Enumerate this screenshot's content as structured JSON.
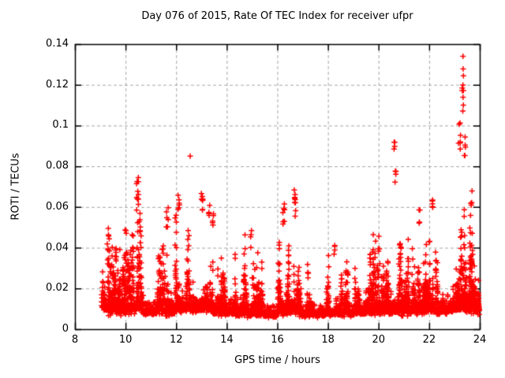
{
  "chart_data": {
    "type": "scatter",
    "title": "Day 076 of 2015, Rate Of TEC Index for receiver ufpr",
    "xlabel": "GPS time / hours",
    "ylabel": "ROTI / TECUs",
    "xlim": [
      8,
      24
    ],
    "ylim": [
      0,
      0.14
    ],
    "xticks": [
      8,
      10,
      12,
      14,
      16,
      18,
      20,
      22,
      24
    ],
    "yticks": [
      0,
      0.02,
      0.04,
      0.06,
      0.08,
      0.1,
      0.12,
      0.14
    ],
    "xtick_labels": [
      "8",
      "10",
      "12",
      "14",
      "16",
      "18",
      "20",
      "22",
      "24"
    ],
    "ytick_labels": [
      "0",
      "0.02",
      "0.04",
      "0.06",
      "0.08",
      "0.1",
      "0.12",
      "0.14"
    ],
    "grid": true,
    "legend": false,
    "marker": "plus",
    "data_time_range": [
      9.05,
      23.98
    ],
    "notable_outliers": [
      [
        12.56,
        0.085
      ],
      [
        23.34,
        0.134
      ],
      [
        23.33,
        0.128
      ],
      [
        20.63,
        0.095
      ],
      [
        10.47,
        0.075
      ],
      [
        16.7,
        0.07
      ],
      [
        23.2,
        0.105
      ]
    ],
    "baseline_segments": [
      {
        "t0": 9.05,
        "t1": 9.3,
        "n": 45,
        "ymin": 0.01,
        "ymax": 0.04,
        "k": 1.8
      },
      {
        "t0": 9.3,
        "t1": 9.85,
        "n": 170,
        "ymin": 0.008,
        "ymax": 0.052,
        "k": 1.9
      },
      {
        "t0": 9.85,
        "t1": 10.35,
        "n": 150,
        "ymin": 0.008,
        "ymax": 0.055,
        "k": 2.6
      },
      {
        "t0": 10.35,
        "t1": 10.65,
        "n": 90,
        "ymin": 0.01,
        "ymax": 0.062,
        "k": 2.2
      },
      {
        "t0": 10.65,
        "t1": 11.35,
        "n": 200,
        "ymin": 0.008,
        "ymax": 0.045,
        "k": 2.8
      },
      {
        "t0": 11.35,
        "t1": 11.95,
        "n": 170,
        "ymin": 0.008,
        "ymax": 0.05,
        "k": 2.7
      },
      {
        "t0": 11.95,
        "t1": 12.6,
        "n": 200,
        "ymin": 0.01,
        "ymax": 0.062,
        "k": 2.2
      },
      {
        "t0": 12.6,
        "t1": 13.45,
        "n": 280,
        "ymin": 0.01,
        "ymax": 0.06,
        "k": 2.3
      },
      {
        "t0": 13.45,
        "t1": 13.85,
        "n": 130,
        "ymin": 0.008,
        "ymax": 0.052,
        "k": 2.7
      },
      {
        "t0": 13.85,
        "t1": 14.35,
        "n": 160,
        "ymin": 0.008,
        "ymax": 0.05,
        "k": 2.8
      },
      {
        "t0": 14.35,
        "t1": 15.35,
        "n": 300,
        "ymin": 0.007,
        "ymax": 0.048,
        "k": 3.1
      },
      {
        "t0": 15.35,
        "t1": 16.05,
        "n": 220,
        "ymin": 0.007,
        "ymax": 0.042,
        "k": 3.1
      },
      {
        "t0": 16.05,
        "t1": 16.55,
        "n": 170,
        "ymin": 0.008,
        "ymax": 0.055,
        "k": 2.7
      },
      {
        "t0": 16.55,
        "t1": 16.85,
        "n": 100,
        "ymin": 0.009,
        "ymax": 0.058,
        "k": 2.3
      },
      {
        "t0": 16.85,
        "t1": 18.05,
        "n": 340,
        "ymin": 0.007,
        "ymax": 0.036,
        "k": 3.1
      },
      {
        "t0": 18.05,
        "t1": 19.05,
        "n": 300,
        "ymin": 0.0075,
        "ymax": 0.044,
        "k": 3.0
      },
      {
        "t0": 19.05,
        "t1": 20.05,
        "n": 300,
        "ymin": 0.008,
        "ymax": 0.05,
        "k": 2.9
      },
      {
        "t0": 20.05,
        "t1": 20.55,
        "n": 160,
        "ymin": 0.008,
        "ymax": 0.055,
        "k": 2.8
      },
      {
        "t0": 20.55,
        "t1": 20.85,
        "n": 110,
        "ymin": 0.009,
        "ymax": 0.06,
        "k": 2.5
      },
      {
        "t0": 20.85,
        "t1": 21.55,
        "n": 220,
        "ymin": 0.008,
        "ymax": 0.05,
        "k": 2.8
      },
      {
        "t0": 21.55,
        "t1": 22.25,
        "n": 230,
        "ymin": 0.009,
        "ymax": 0.058,
        "k": 2.6
      },
      {
        "t0": 22.25,
        "t1": 22.95,
        "n": 220,
        "ymin": 0.009,
        "ymax": 0.052,
        "k": 2.6
      },
      {
        "t0": 22.95,
        "t1": 23.55,
        "n": 230,
        "ymin": 0.01,
        "ymax": 0.078,
        "k": 2.0
      },
      {
        "t0": 23.55,
        "t1": 23.98,
        "n": 180,
        "ymin": 0.009,
        "ymax": 0.058,
        "k": 2.3
      }
    ],
    "spike_clusters": [
      {
        "t": 9.3,
        "spread": 0.05,
        "n": 4,
        "ymin": 0.034,
        "ymax": 0.042
      },
      {
        "t": 10.47,
        "spread": 0.08,
        "n": 12,
        "ymin": 0.056,
        "ymax": 0.075
      },
      {
        "t": 11.65,
        "spread": 0.08,
        "n": 6,
        "ymin": 0.05,
        "ymax": 0.061
      },
      {
        "t": 12.1,
        "spread": 0.06,
        "n": 6,
        "ymin": 0.058,
        "ymax": 0.067
      },
      {
        "t": 12.56,
        "spread": 0.01,
        "n": 1,
        "ymin": 0.085,
        "ymax": 0.085
      },
      {
        "t": 13.02,
        "spread": 0.1,
        "n": 8,
        "ymin": 0.057,
        "ymax": 0.068
      },
      {
        "t": 13.3,
        "spread": 0.06,
        "n": 4,
        "ymin": 0.055,
        "ymax": 0.062
      },
      {
        "t": 13.45,
        "spread": 0.06,
        "n": 5,
        "ymin": 0.048,
        "ymax": 0.057
      },
      {
        "t": 14.95,
        "spread": 0.06,
        "n": 4,
        "ymin": 0.04,
        "ymax": 0.05
      },
      {
        "t": 16.25,
        "spread": 0.07,
        "n": 7,
        "ymin": 0.05,
        "ymax": 0.062
      },
      {
        "t": 16.7,
        "spread": 0.07,
        "n": 9,
        "ymin": 0.055,
        "ymax": 0.07
      },
      {
        "t": 18.25,
        "spread": 0.05,
        "n": 4,
        "ymin": 0.036,
        "ymax": 0.044
      },
      {
        "t": 20.63,
        "spread": 0.04,
        "n": 4,
        "ymin": 0.088,
        "ymax": 0.095
      },
      {
        "t": 20.67,
        "spread": 0.05,
        "n": 4,
        "ymin": 0.071,
        "ymax": 0.079
      },
      {
        "t": 21.62,
        "spread": 0.05,
        "n": 4,
        "ymin": 0.052,
        "ymax": 0.062
      },
      {
        "t": 22.15,
        "spread": 0.06,
        "n": 5,
        "ymin": 0.055,
        "ymax": 0.065
      },
      {
        "t": 23.2,
        "spread": 0.08,
        "n": 7,
        "ymin": 0.088,
        "ymax": 0.105
      },
      {
        "t": 23.33,
        "spread": 0.06,
        "n": 9,
        "ymin": 0.103,
        "ymax": 0.128
      },
      {
        "t": 23.34,
        "spread": 0.01,
        "n": 1,
        "ymin": 0.134,
        "ymax": 0.134
      },
      {
        "t": 23.42,
        "spread": 0.06,
        "n": 5,
        "ymin": 0.08,
        "ymax": 0.098
      },
      {
        "t": 23.67,
        "spread": 0.05,
        "n": 4,
        "ymin": 0.058,
        "ymax": 0.068
      }
    ]
  },
  "colors": {
    "marker": "#ff0000",
    "grid": "#a6a6a6",
    "border": "#000000",
    "text": "#000000",
    "background": "#ffffff"
  }
}
